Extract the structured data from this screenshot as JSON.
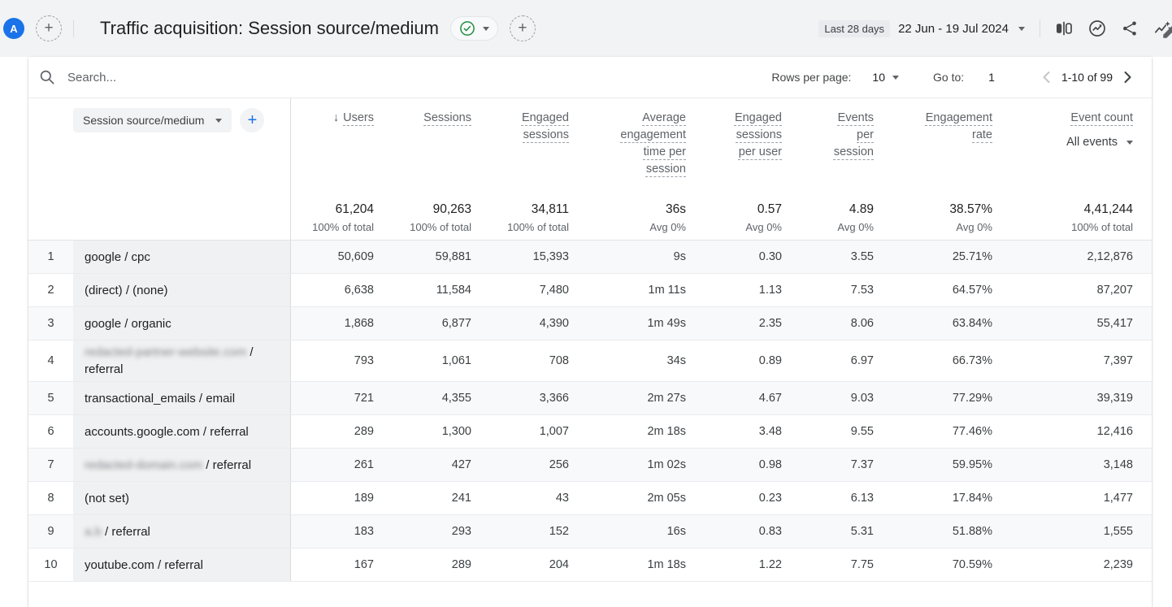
{
  "colors": {
    "accent_blue": "#1a73e8",
    "check_green": "#1e8e3e",
    "topbar_bg": "#f1f3f4",
    "dimension_column_bg": "#f0f1f2",
    "odd_row_bg": "#f8f9fa"
  },
  "header": {
    "avatar_letter": "A",
    "title": "Traffic acquisition: Session source/medium",
    "date_preset": "Last 28 days",
    "date_range": "22 Jun - 19 Jul 2024"
  },
  "toolbar": {
    "search_placeholder": "Search...",
    "rows_per_page_label": "Rows per page:",
    "rows_per_page_value": "10",
    "goto_label": "Go to:",
    "goto_value": "1",
    "range_text": "1-10 of 99"
  },
  "table": {
    "dimension_selector": "Session source/medium",
    "columns": [
      {
        "label": "Users",
        "sorted": true
      },
      {
        "label": "Sessions"
      },
      {
        "label": "Engaged sessions"
      },
      {
        "label": "Average engagement time per session"
      },
      {
        "label": "Engaged sessions per user"
      },
      {
        "label": "Events per session"
      },
      {
        "label": "Engagement rate"
      },
      {
        "label": "Event count",
        "filter": "All events"
      }
    ],
    "totals": [
      {
        "value": "61,204",
        "sub": "100% of total"
      },
      {
        "value": "90,263",
        "sub": "100% of total"
      },
      {
        "value": "34,811",
        "sub": "100% of total"
      },
      {
        "value": "36s",
        "sub": "Avg 0%"
      },
      {
        "value": "0.57",
        "sub": "Avg 0%"
      },
      {
        "value": "4.89",
        "sub": "Avg 0%"
      },
      {
        "value": "38.57%",
        "sub": "Avg 0%"
      },
      {
        "value": "4,41,244",
        "sub": "100% of total"
      }
    ],
    "rows": [
      {
        "num": "1",
        "lines": [
          [
            {
              "t": "google / cpc"
            }
          ]
        ],
        "values": [
          "50,609",
          "59,881",
          "15,393",
          "9s",
          "0.30",
          "3.55",
          "25.71%",
          "2,12,876"
        ]
      },
      {
        "num": "2",
        "lines": [
          [
            {
              "t": "(direct) / (none)"
            }
          ]
        ],
        "values": [
          "6,638",
          "11,584",
          "7,480",
          "1m 11s",
          "1.13",
          "7.53",
          "64.57%",
          "87,207"
        ]
      },
      {
        "num": "3",
        "lines": [
          [
            {
              "t": "google / organic"
            }
          ]
        ],
        "values": [
          "1,868",
          "6,877",
          "4,390",
          "1m 49s",
          "2.35",
          "8.06",
          "63.84%",
          "55,417"
        ]
      },
      {
        "num": "4",
        "lines": [
          [
            {
              "t": "redacted-partner-website.com",
              "redacted": true
            },
            {
              "t": " /"
            }
          ],
          [
            {
              "t": "referral"
            }
          ]
        ],
        "values": [
          "793",
          "1,061",
          "708",
          "34s",
          "0.89",
          "6.97",
          "66.73%",
          "7,397"
        ]
      },
      {
        "num": "5",
        "lines": [
          [
            {
              "t": "transactional_emails / email"
            }
          ]
        ],
        "values": [
          "721",
          "4,355",
          "3,366",
          "2m 27s",
          "4.67",
          "9.03",
          "77.29%",
          "39,319"
        ]
      },
      {
        "num": "6",
        "lines": [
          [
            {
              "t": "accounts.google.com / referral"
            }
          ]
        ],
        "values": [
          "289",
          "1,300",
          "1,007",
          "2m 18s",
          "3.48",
          "9.55",
          "77.46%",
          "12,416"
        ]
      },
      {
        "num": "7",
        "lines": [
          [
            {
              "t": "redacted-domain.com",
              "redacted": true
            },
            {
              "t": " / referral"
            }
          ]
        ],
        "values": [
          "261",
          "427",
          "256",
          "1m 02s",
          "0.98",
          "7.37",
          "59.95%",
          "3,148"
        ]
      },
      {
        "num": "8",
        "lines": [
          [
            {
              "t": "(not set)"
            }
          ]
        ],
        "values": [
          "189",
          "241",
          "43",
          "2m 05s",
          "0.23",
          "6.13",
          "17.84%",
          "1,477"
        ]
      },
      {
        "num": "9",
        "lines": [
          [
            {
              "t": "a.b",
              "redacted": true
            },
            {
              "t": " / referral"
            }
          ]
        ],
        "values": [
          "183",
          "293",
          "152",
          "16s",
          "0.83",
          "5.31",
          "51.88%",
          "1,555"
        ]
      },
      {
        "num": "10",
        "lines": [
          [
            {
              "t": "youtube.com / referral"
            }
          ]
        ],
        "values": [
          "167",
          "289",
          "204",
          "1m 18s",
          "1.22",
          "7.75",
          "70.59%",
          "2,239"
        ]
      }
    ]
  }
}
